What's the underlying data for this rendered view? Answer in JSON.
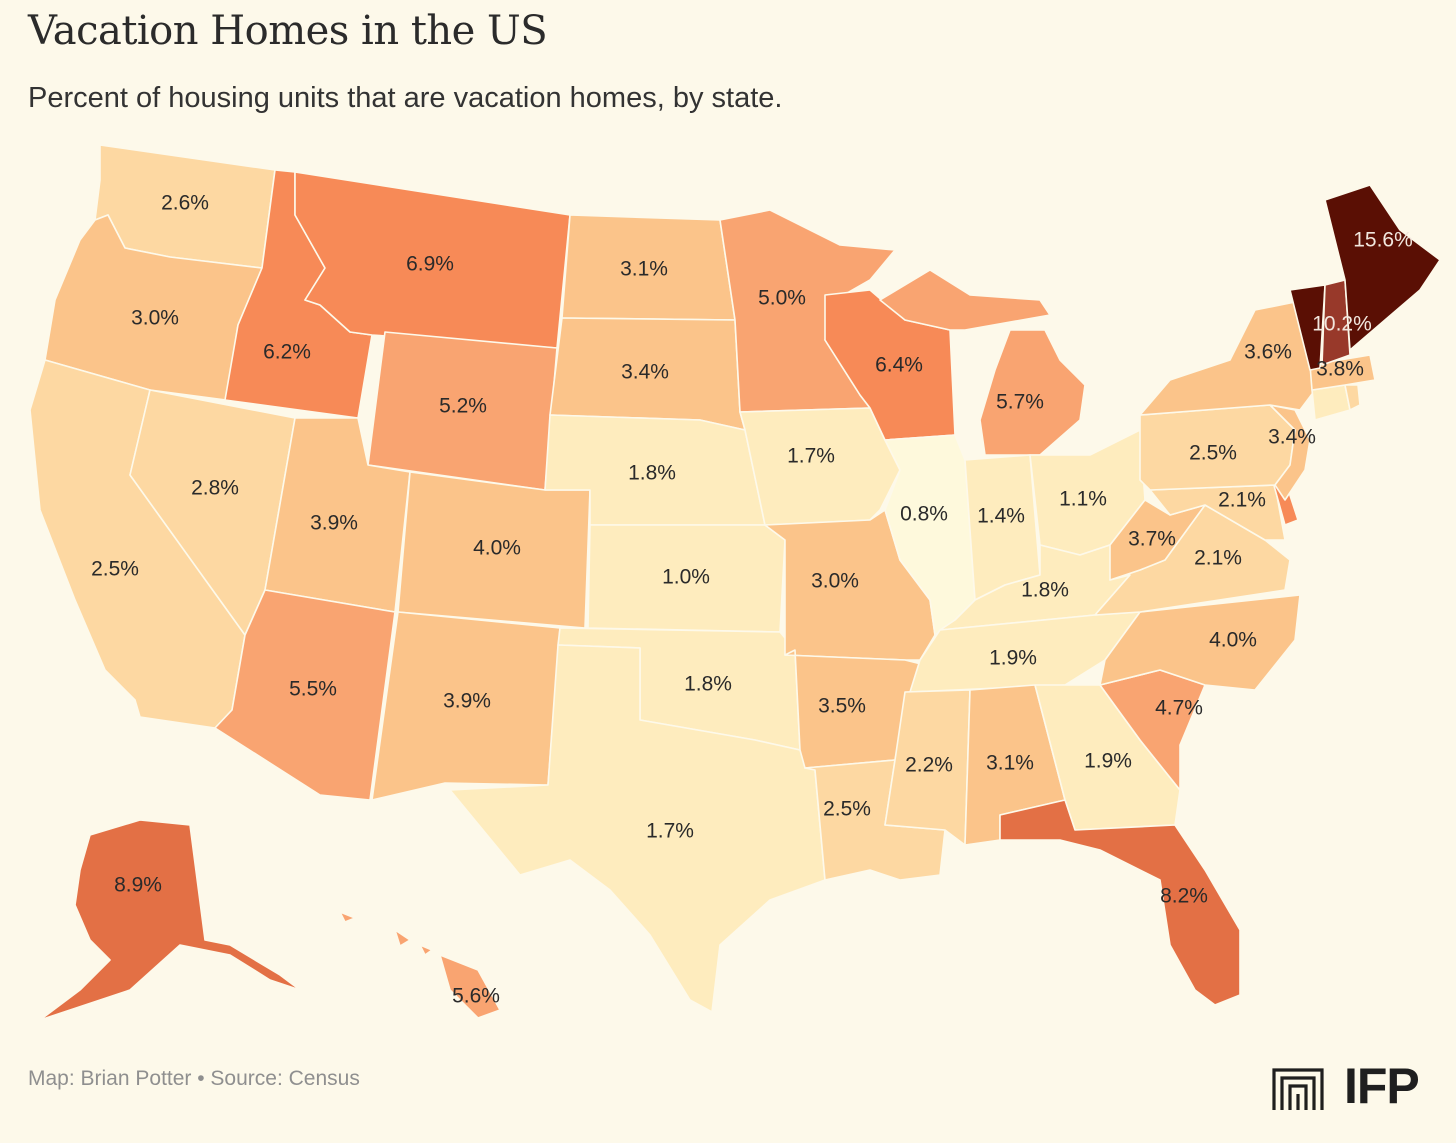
{
  "header": {
    "title": "Vacation Homes in the US",
    "subtitle": "Percent of housing units that are vacation homes, by state."
  },
  "footer": {
    "credit": "Map: Brian Potter • Source: Census",
    "logo_text": "IFP"
  },
  "colors": {
    "background": "#fdf9ea",
    "scale": [
      "#fef9dc",
      "#feecbe",
      "#fdd8a2",
      "#fbc48a",
      "#f9a471",
      "#f78a57",
      "#e37045",
      "#98392a",
      "#5a0f04"
    ],
    "text_dark": "#2a2a2a",
    "text_light": "#f2e7de"
  },
  "chart_data": {
    "type": "choropleth",
    "title": "Vacation Homes in the US",
    "subtitle": "Percent of housing units that are vacation homes, by state.",
    "unit": "%",
    "states": [
      {
        "state": "WA",
        "value": 2.6,
        "label": "2.6%"
      },
      {
        "state": "OR",
        "value": 3.0,
        "label": "3.0%"
      },
      {
        "state": "CA",
        "value": 2.5,
        "label": "2.5%"
      },
      {
        "state": "ID",
        "value": 6.2,
        "label": "6.2%"
      },
      {
        "state": "NV",
        "value": 2.8,
        "label": "2.8%"
      },
      {
        "state": "MT",
        "value": 6.9,
        "label": "6.9%"
      },
      {
        "state": "WY",
        "value": 5.2,
        "label": "5.2%"
      },
      {
        "state": "UT",
        "value": 3.9,
        "label": "3.9%"
      },
      {
        "state": "AZ",
        "value": 5.5,
        "label": "5.5%"
      },
      {
        "state": "CO",
        "value": 4.0,
        "label": "4.0%"
      },
      {
        "state": "NM",
        "value": 3.9,
        "label": "3.9%"
      },
      {
        "state": "ND",
        "value": 3.1,
        "label": "3.1%"
      },
      {
        "state": "SD",
        "value": 3.4,
        "label": "3.4%"
      },
      {
        "state": "NE",
        "value": 1.8,
        "label": "1.8%"
      },
      {
        "state": "KS",
        "value": 1.0,
        "label": "1.0%"
      },
      {
        "state": "OK",
        "value": 1.8,
        "label": "1.8%"
      },
      {
        "state": "TX",
        "value": 1.7,
        "label": "1.7%"
      },
      {
        "state": "MN",
        "value": 5.0,
        "label": "5.0%"
      },
      {
        "state": "IA",
        "value": 1.7,
        "label": "1.7%"
      },
      {
        "state": "MO",
        "value": 3.0,
        "label": "3.0%"
      },
      {
        "state": "AR",
        "value": 3.5,
        "label": "3.5%"
      },
      {
        "state": "LA",
        "value": 2.5,
        "label": "2.5%"
      },
      {
        "state": "WI",
        "value": 6.4,
        "label": "6.4%"
      },
      {
        "state": "IL",
        "value": 0.8,
        "label": "0.8%"
      },
      {
        "state": "MI",
        "value": 5.7,
        "label": "5.7%"
      },
      {
        "state": "IN",
        "value": 1.4,
        "label": "1.4%"
      },
      {
        "state": "OH",
        "value": 1.1,
        "label": "1.1%"
      },
      {
        "state": "KY",
        "value": 1.8,
        "label": "1.8%"
      },
      {
        "state": "TN",
        "value": 1.9,
        "label": "1.9%"
      },
      {
        "state": "MS",
        "value": 2.2,
        "label": "2.2%"
      },
      {
        "state": "AL",
        "value": 3.1,
        "label": "3.1%"
      },
      {
        "state": "GA",
        "value": 1.9,
        "label": "1.9%"
      },
      {
        "state": "FL",
        "value": 8.2,
        "label": "8.2%"
      },
      {
        "state": "SC",
        "value": 4.7,
        "label": "4.7%"
      },
      {
        "state": "NC",
        "value": 4.0,
        "label": "4.0%"
      },
      {
        "state": "VA",
        "value": 2.1,
        "label": "2.1%"
      },
      {
        "state": "WV",
        "value": 3.7,
        "label": "3.7%"
      },
      {
        "state": "MD",
        "value": 2.1,
        "label": "2.1%"
      },
      {
        "state": "DE",
        "value": null,
        "label": ""
      },
      {
        "state": "PA",
        "value": 2.5,
        "label": "2.5%"
      },
      {
        "state": "NJ",
        "value": 3.4,
        "label": "3.4%"
      },
      {
        "state": "NY",
        "value": 3.6,
        "label": "3.6%"
      },
      {
        "state": "CT",
        "value": null,
        "label": ""
      },
      {
        "state": "RI",
        "value": null,
        "label": ""
      },
      {
        "state": "MA",
        "value": 3.8,
        "label": "3.8%"
      },
      {
        "state": "VT",
        "value": null,
        "label": ""
      },
      {
        "state": "NH",
        "value": 10.2,
        "label": "10.2%"
      },
      {
        "state": "ME",
        "value": 15.6,
        "label": "15.6%"
      },
      {
        "state": "AK",
        "value": 8.9,
        "label": "8.9%"
      },
      {
        "state": "HI",
        "value": 5.6,
        "label": "5.6%"
      }
    ]
  }
}
